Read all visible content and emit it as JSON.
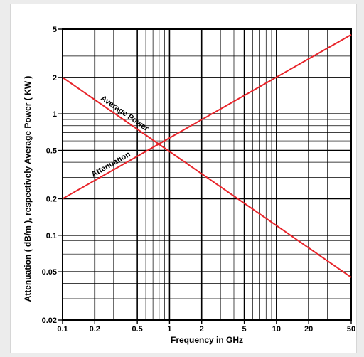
{
  "chart_data": {
    "type": "line",
    "xscale": "log",
    "yscale": "log",
    "xlim": [
      0.1,
      50
    ],
    "ylim": [
      0.02,
      5
    ],
    "xlabel": "Frequency in GHz",
    "ylabel": "Attenuation  ( dB/m ), respectively Average Power ( KW )",
    "xticks": [
      0.1,
      0.2,
      0.5,
      1,
      2,
      5,
      10,
      20,
      50
    ],
    "xtick_labels": [
      "0.1",
      "0.2",
      "0.5",
      "1",
      "2",
      "5",
      "10",
      "20",
      "50"
    ],
    "yticks": [
      0.02,
      0.05,
      0.1,
      0.2,
      0.5,
      1,
      2,
      5
    ],
    "ytick_labels": [
      "0.02",
      "0.05",
      "0.1",
      "0.2",
      "0.5",
      "1",
      "2",
      "5"
    ],
    "grid": true,
    "series": [
      {
        "name": "Attenuation",
        "x": [
          0.1,
          50
        ],
        "y": [
          0.2,
          4.5
        ],
        "color": "#e8242a"
      },
      {
        "name": "Average Power",
        "x": [
          0.1,
          50
        ],
        "y": [
          2.0,
          0.045
        ],
        "color": "#e8242a"
      }
    ]
  }
}
